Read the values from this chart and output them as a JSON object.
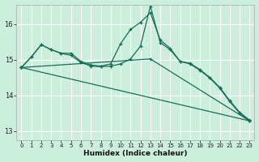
{
  "xlabel": "Humidex (Indice chaleur)",
  "bg_color": "#cceedd",
  "grid_color": "#ffffff",
  "line_color": "#1a6b5a",
  "xlim": [
    -0.5,
    23.5
  ],
  "ylim": [
    12.75,
    16.55
  ],
  "yticks": [
    13,
    14,
    15,
    16
  ],
  "xticks": [
    0,
    1,
    2,
    3,
    4,
    5,
    6,
    7,
    8,
    9,
    10,
    11,
    12,
    13,
    14,
    15,
    16,
    17,
    18,
    19,
    20,
    21,
    22,
    23
  ],
  "series1": [
    14.78,
    15.08,
    15.42,
    15.28,
    15.18,
    15.18,
    14.95,
    14.85,
    14.82,
    14.88,
    15.45,
    15.85,
    16.05,
    16.32,
    15.55,
    15.32,
    14.95,
    14.9,
    14.72,
    14.5,
    14.22,
    13.85,
    13.52,
    13.3
  ],
  "series2": [
    14.78,
    15.08,
    15.42,
    15.28,
    15.18,
    15.12,
    14.92,
    14.82,
    14.8,
    14.82,
    14.88,
    15.02,
    15.38,
    16.5,
    15.48,
    15.28,
    14.95,
    14.88,
    14.7,
    14.48,
    14.2,
    13.82,
    13.5,
    13.28
  ],
  "series3_x": [
    0,
    13,
    23
  ],
  "series3_y": [
    14.78,
    15.02,
    13.28
  ],
  "series4_x": [
    0,
    23
  ],
  "series4_y": [
    14.78,
    13.28
  ]
}
